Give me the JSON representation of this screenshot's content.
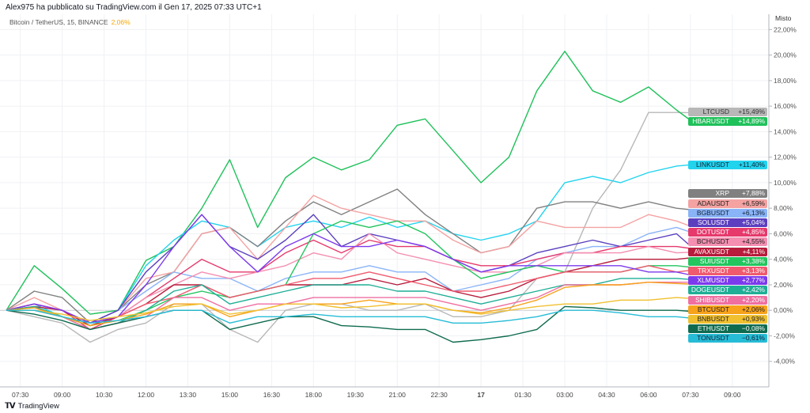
{
  "header": {
    "author_line": "Alex975 ha pubblicato su TradingView.com il Gen 17, 2025 07:33 UTC+1",
    "symbol": "Bitcoin / TetherUS, 15, BINANCE",
    "change": "2,06%"
  },
  "scale_mode": "Misto",
  "footer": {
    "brand": "TradingView",
    "logo": "TV"
  },
  "chart_data": {
    "type": "line",
    "title": "Bitcoin / TetherUS, 15, BINANCE",
    "xlabel": "",
    "ylabel": "% change",
    "ylim": [
      -6,
      23.2
    ],
    "xlim_hours_from_0700": [
      -0.2,
      27.3
    ],
    "y_ticks": [
      "22,00%",
      "20,00%",
      "18,00%",
      "16,00%",
      "14,00%",
      "12,00%",
      "10,00%",
      "8,00%",
      "6,00%",
      "4,00%",
      "2,00%",
      "0,00%",
      "-2,00%",
      "-4,00%"
    ],
    "y_tick_values": [
      22,
      20,
      18,
      16,
      14,
      12,
      10,
      8,
      6,
      4,
      2,
      0,
      -2,
      -4
    ],
    "x_ticks": [
      "07:30",
      "09:00",
      "10:30",
      "12:00",
      "13:30",
      "15:00",
      "16:30",
      "18:00",
      "19:30",
      "21:00",
      "22:30",
      "17",
      "01:30",
      "03:00",
      "04:30",
      "06:00",
      "07:30",
      "09:00"
    ],
    "x_tick_hours": [
      0.5,
      2,
      3.5,
      5,
      6.5,
      8,
      9.5,
      11,
      12.5,
      14,
      15.5,
      17,
      18.5,
      20,
      21.5,
      23,
      24.5,
      26
    ],
    "x_hours": [
      0,
      1,
      2,
      3,
      4,
      5,
      6,
      7,
      8,
      9,
      10,
      11,
      12,
      13,
      14,
      15,
      16,
      17,
      18,
      19,
      20,
      21,
      22,
      23,
      24,
      24.5
    ],
    "grid": true,
    "series": [
      {
        "name": "LTCUSD",
        "label": "+15,49%",
        "last": 15.49,
        "color": "#b8b8b8",
        "text": "#333",
        "values": [
          0,
          -0.5,
          -1,
          -2.5,
          -1.5,
          -1,
          0.5,
          0.5,
          -1.5,
          -2.5,
          0,
          0.5,
          0.5,
          0,
          0,
          0.5,
          -0.5,
          -0.5,
          0,
          2.5,
          3,
          8,
          11,
          15.5,
          15.5,
          15.49
        ]
      },
      {
        "name": "HBARUSDT",
        "label": "+14,89%",
        "last": 14.89,
        "color": "#1fc15a",
        "text": "#fff",
        "values": [
          0,
          3.5,
          1.7,
          -0.3,
          0,
          3.9,
          5,
          8,
          11.8,
          6.5,
          10.4,
          12,
          11,
          11.8,
          14.5,
          15,
          12.5,
          10,
          12,
          17.2,
          20.3,
          17.2,
          16.3,
          17.5,
          15.7,
          14.89
        ]
      },
      {
        "name": "LINKUSDT",
        "label": "+11,40%",
        "last": 11.4,
        "color": "#22d3ee",
        "text": "#123",
        "values": [
          0,
          0.5,
          -0.5,
          -1,
          0,
          3.5,
          5.5,
          7,
          6.5,
          5,
          6.5,
          7,
          6.5,
          7.3,
          6.5,
          7,
          6,
          5.5,
          6,
          7,
          10,
          10.5,
          10,
          10.8,
          11.3,
          11.4
        ]
      },
      {
        "name": "XRP",
        "label": "+7,88%",
        "last": 7.88,
        "color": "#808080",
        "text": "#fff",
        "values": [
          0,
          1.5,
          1,
          -1,
          0,
          2,
          3,
          6,
          6.5,
          5,
          7,
          8.5,
          7.5,
          8.5,
          9.5,
          7.5,
          6,
          4.5,
          5,
          8,
          8.5,
          8.5,
          8,
          8.5,
          8,
          7.88
        ]
      },
      {
        "name": "ADAUSDT",
        "label": "+6,59%",
        "last": 6.59,
        "color": "#f4a2a2",
        "text": "#222",
        "values": [
          0,
          1,
          0,
          -1,
          0,
          2.5,
          3,
          6,
          6.5,
          4,
          6.5,
          9,
          8,
          7.5,
          7,
          7,
          5.5,
          4.5,
          5,
          7,
          6.5,
          6.5,
          6.5,
          7.5,
          7,
          6.59
        ]
      },
      {
        "name": "BGBUSDT",
        "label": "+6,13%",
        "last": 6.13,
        "color": "#8ab4f8",
        "text": "#123",
        "values": [
          0,
          0.5,
          0,
          -1,
          0,
          1.5,
          3,
          2.5,
          2.5,
          1.5,
          2.5,
          3,
          3,
          3.5,
          3,
          3,
          1.5,
          2,
          2.5,
          4,
          4.5,
          5,
          5,
          6,
          6.5,
          6.13
        ]
      },
      {
        "name": "SOLUSDT",
        "label": "+5,04%",
        "last": 5.04,
        "color": "#5b3fbf",
        "text": "#fff",
        "values": [
          0,
          0.5,
          0,
          -1,
          0,
          3,
          5,
          7.5,
          5,
          4,
          5.5,
          7.5,
          5,
          6,
          5.5,
          5,
          4,
          3,
          3.5,
          4.5,
          5,
          5.5,
          5,
          5.5,
          6,
          5.04
        ]
      },
      {
        "name": "DOTUSDT",
        "label": "+4,85%",
        "last": 4.85,
        "color": "#e6396c",
        "text": "#fff",
        "values": [
          0,
          0.5,
          0,
          -1.5,
          -0.5,
          1,
          2.5,
          4,
          3,
          3,
          4.5,
          5.5,
          4.5,
          5.5,
          5,
          5,
          4,
          3.5,
          3.5,
          4,
          4.5,
          4.5,
          5,
          5,
          5,
          4.85
        ]
      },
      {
        "name": "BCHUSDT",
        "label": "+4,55%",
        "last": 4.55,
        "color": "#f48fb1",
        "text": "#222",
        "values": [
          0,
          0.5,
          0,
          -1,
          -0.5,
          1,
          2,
          3,
          2.5,
          3,
          3.5,
          4.5,
          4,
          6,
          4.5,
          4,
          3.5,
          3,
          3,
          3.5,
          4.5,
          4.5,
          4.5,
          5,
          4.5,
          4.55
        ]
      },
      {
        "name": "AVAXUSDT",
        "label": "+4,11%",
        "last": 4.11,
        "color": "#b71c3c",
        "text": "#fff",
        "values": [
          0,
          0.3,
          0,
          -1.2,
          -0.5,
          0.5,
          2,
          2,
          1,
          1.5,
          2,
          2,
          2,
          2.5,
          2,
          2.5,
          1.5,
          1,
          1.5,
          2.5,
          3,
          3.5,
          4,
          4,
          4,
          4.11
        ]
      },
      {
        "name": "SUIUSDT",
        "label": "+3,38%",
        "last": 3.38,
        "color": "#22c55e",
        "text": "#fff",
        "values": [
          0,
          0,
          -0.5,
          -1.2,
          -0.8,
          0,
          1,
          1.5,
          1,
          1.5,
          2,
          6,
          7,
          6.5,
          7,
          6,
          4,
          2.5,
          3,
          3.5,
          3,
          3,
          3,
          3.5,
          3.5,
          3.38
        ]
      },
      {
        "name": "TRXUSDT",
        "label": "+3,13%",
        "last": 3.13,
        "color": "#f05a6e",
        "text": "#fff",
        "values": [
          0,
          0.5,
          0,
          -1,
          -0.5,
          0.5,
          1,
          2,
          1,
          1.5,
          2,
          2.5,
          2.5,
          3,
          2.5,
          2,
          1.5,
          1.5,
          2,
          2.5,
          3,
          3,
          3,
          3.5,
          3,
          3.13
        ]
      },
      {
        "name": "XLMUSDT",
        "label": "+2,77%",
        "last": 2.77,
        "color": "#7c3aed",
        "text": "#fff",
        "values": [
          0,
          0.5,
          0,
          -1,
          -0.5,
          2,
          5,
          7.5,
          5,
          3,
          5,
          6,
          5,
          5,
          5.5,
          5,
          4,
          3,
          3.5,
          3.5,
          3.5,
          3.5,
          3.5,
          3,
          3,
          2.77
        ]
      },
      {
        "name": "DOGEUSDT",
        "label": "+2,42%",
        "last": 2.42,
        "color": "#1fae96",
        "text": "#fff",
        "values": [
          0,
          0.3,
          -0.5,
          -1.5,
          -1,
          0,
          1.5,
          2,
          0.5,
          1,
          1.5,
          2,
          2,
          2,
          1.5,
          1.5,
          1,
          0.5,
          1,
          1.5,
          2,
          2,
          2.5,
          2.5,
          2.5,
          2.42
        ]
      },
      {
        "name": "SHIBUSDT",
        "label": "+2,20%",
        "last": 2.2,
        "color": "#ef6fa0",
        "text": "#fff",
        "values": [
          0,
          0,
          -0.5,
          -1.5,
          -1,
          -0.5,
          1,
          1,
          0,
          0.5,
          0.5,
          1,
          1,
          1,
          1,
          1,
          0.5,
          0,
          0.5,
          1,
          2,
          2,
          2,
          2.2,
          2.2,
          2.2
        ]
      },
      {
        "name": "BTCUSDT",
        "label": "+2,06%",
        "last": 2.06,
        "color": "#f7a21b",
        "text": "#222",
        "values": [
          0,
          0.2,
          -0.5,
          -1.2,
          -0.8,
          -0.3,
          0.5,
          0.5,
          -0.5,
          0,
          0.5,
          0.5,
          0.5,
          0.8,
          0.5,
          0.5,
          0,
          -0.2,
          0.2,
          0.8,
          1.8,
          2,
          2,
          2.2,
          2.1,
          2.06
        ]
      },
      {
        "name": "BNBUSDT",
        "label": "+0,93%",
        "last": 0.93,
        "color": "#f0c030",
        "text": "#222",
        "values": [
          0,
          0,
          -0.3,
          -0.8,
          -0.5,
          -0.2,
          0.3,
          0.5,
          -0.3,
          0,
          0.5,
          0.5,
          0.2,
          0.3,
          0.5,
          0.5,
          0,
          -0.3,
          0,
          0.3,
          0.5,
          0.5,
          0.8,
          0.8,
          1,
          0.93
        ]
      },
      {
        "name": "ETHUSDT",
        "label": "−0,08%",
        "last": -0.08,
        "color": "#0f6b4f",
        "text": "#fff",
        "values": [
          0,
          -0.3,
          -0.8,
          -1.5,
          -1,
          -0.5,
          0,
          0,
          -1.5,
          -1,
          -0.5,
          -0.5,
          -1.2,
          -1.3,
          -1.5,
          -1.5,
          -2.5,
          -2.3,
          -2,
          -1.5,
          0.3,
          0.2,
          0,
          0,
          0,
          -0.08
        ]
      },
      {
        "name": "TONUSDT",
        "label": "−0,61%",
        "last": -0.61,
        "color": "#26bcd6",
        "text": "#123",
        "values": [
          0,
          0,
          -0.5,
          -1,
          -0.8,
          -0.5,
          0,
          0,
          -1,
          -0.5,
          -0.5,
          -0.3,
          -0.5,
          -0.5,
          -0.5,
          -0.5,
          -1,
          -1,
          -0.8,
          -0.5,
          0,
          0,
          -0.2,
          -0.5,
          -0.5,
          -0.61
        ]
      }
    ]
  }
}
